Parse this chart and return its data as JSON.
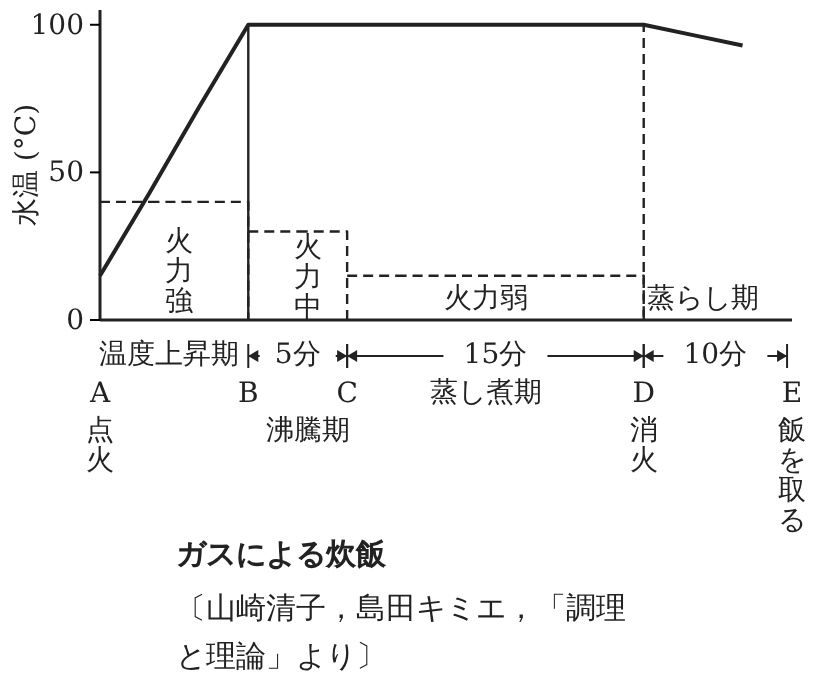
{
  "chart_data": {
    "type": "line",
    "title": "ガスによる炊飯",
    "ylabel": "水温 (°C)",
    "categories": [
      "A",
      null,
      null,
      "B",
      null,
      "C",
      null,
      null,
      null,
      null,
      null,
      "D",
      null,
      null,
      "E"
    ],
    "ylim": [
      0,
      105
    ],
    "yticks": [
      0,
      50,
      100
    ],
    "series": [
      {
        "color": "#222222",
        "values": [
          15,
          43,
          72,
          100,
          100,
          100,
          100,
          100,
          100,
          100,
          100,
          100,
          96.5,
          93,
          null
        ],
        "line_style": "solid"
      },
      {
        "type": "step",
        "color": "#222222",
        "values": [
          40,
          40,
          40,
          30,
          30,
          15,
          15,
          15,
          15,
          15,
          15,
          null,
          null,
          null,
          null
        ],
        "line_style": "dashed"
      }
    ],
    "ref_lines": [
      {
        "axis": "x",
        "value": "B",
        "line_style": "solid",
        "color": "#222222"
      },
      {
        "axis": "x",
        "value": "D",
        "line_style": "dashed",
        "color": "#222222"
      }
    ],
    "annotations": [
      "火力強",
      "火力中",
      "火力弱",
      "蒸らし期",
      "温度上昇期",
      "5分",
      "15分",
      "10分",
      "蒸し煮期",
      "沸騰期",
      "点火",
      "消火",
      "飯を取る",
      "〔山崎清子，島田キミエ，「調理と理論」より〕"
    ]
  }
}
